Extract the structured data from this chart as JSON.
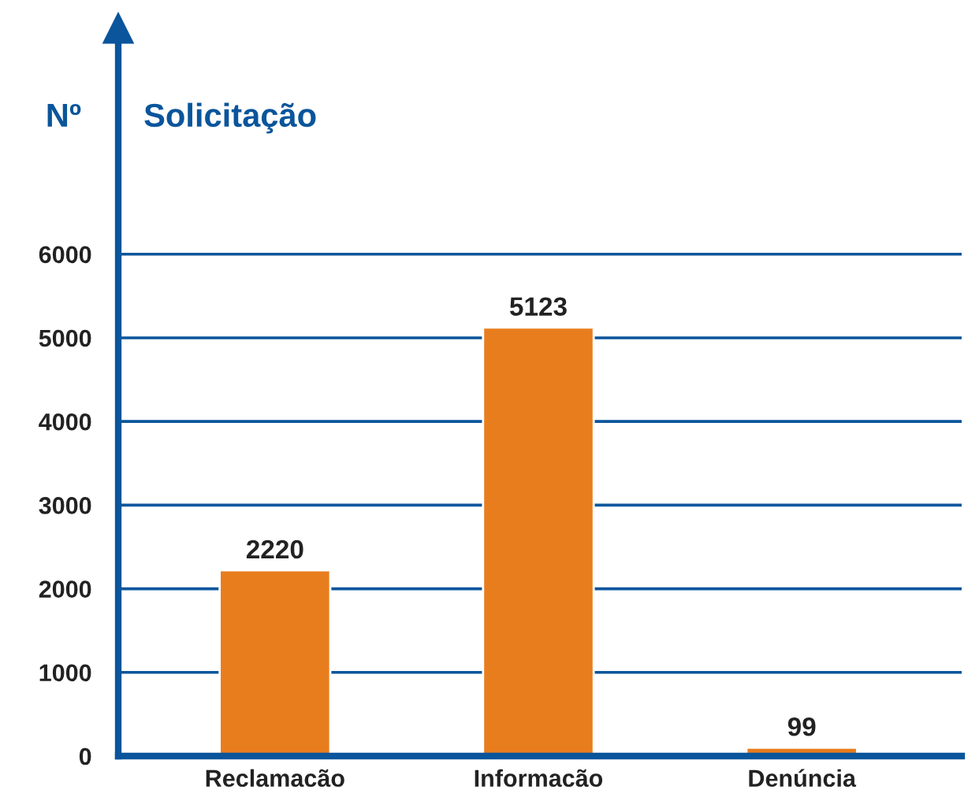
{
  "chart_data": {
    "type": "bar",
    "title": "Solicitação",
    "ylabel": "Nº",
    "categories": [
      "Reclamacão",
      "Informacão",
      "Denúncia"
    ],
    "values": [
      2220,
      5123,
      99
    ],
    "color": "#e87d1e",
    "ylim": [
      0,
      8700
    ],
    "yticks": [
      0,
      1000,
      2000,
      3000,
      4000,
      5000,
      6000
    ],
    "grid": "y",
    "data_labels": true
  }
}
